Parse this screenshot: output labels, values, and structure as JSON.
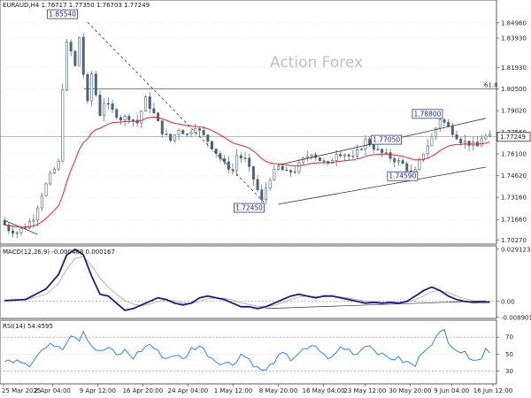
{
  "chart_data": [
    {
      "type": "candlestick",
      "title": "EURAUD,H4  1.76717 1.77350 1.76703 1.77249",
      "watermark": "Action Forex",
      "ylim": [
        1.7,
        1.865
      ],
      "y_ticks": [
        "1.84960",
        "1.83930",
        "1.81930",
        "1.80500",
        "1.79020",
        "1.77560",
        "1.76100",
        "1.74620",
        "1.73160",
        "1.71660",
        "1.70270"
      ],
      "current_price": "1.77249",
      "fib_label": "61.8",
      "fib_level": 1.805,
      "annotations": [
        {
          "label": "1.85540",
          "idx": 18,
          "price": 1.8554,
          "side": "left"
        },
        {
          "label": "1.72450",
          "idx": 63,
          "price": 1.7245,
          "side": "left"
        },
        {
          "label": "1.77050",
          "idx": 88,
          "price": 1.7705,
          "side": "right"
        },
        {
          "label": "1.74590",
          "idx": 100,
          "price": 1.7459,
          "side": "left"
        },
        {
          "label": "1.78800",
          "idx": 106,
          "price": 1.788,
          "side": "left"
        }
      ],
      "trendlines": [
        {
          "x1": 0,
          "y1": 1.716,
          "x2": 8,
          "y2": 1.7065
        },
        {
          "x1": 20,
          "y1": 1.85,
          "x2": 63,
          "y2": 1.727,
          "style": "dashed"
        },
        {
          "x1": 66,
          "y1": 1.7535,
          "x2": 116,
          "y2": 1.785
        },
        {
          "x1": 66,
          "y1": 1.727,
          "x2": 116,
          "y2": 1.752
        }
      ],
      "close_points": [
        [
          0,
          1.716
        ],
        [
          2,
          1.71
        ],
        [
          4,
          1.708
        ],
        [
          6,
          1.712
        ],
        [
          8,
          1.718
        ],
        [
          10,
          1.734
        ],
        [
          12,
          1.746
        ],
        [
          14,
          1.755
        ],
        [
          15,
          1.806
        ],
        [
          16,
          1.835
        ],
        [
          17,
          1.83
        ],
        [
          18,
          1.82
        ],
        [
          19,
          1.84
        ],
        [
          20,
          1.815
        ],
        [
          21,
          1.795
        ],
        [
          22,
          1.815
        ],
        [
          23,
          1.801
        ],
        [
          24,
          1.788
        ],
        [
          25,
          1.796
        ],
        [
          27,
          1.79
        ],
        [
          29,
          1.785
        ],
        [
          31,
          1.786
        ],
        [
          33,
          1.782
        ],
        [
          35,
          1.798
        ],
        [
          37,
          1.788
        ],
        [
          39,
          1.776
        ],
        [
          41,
          1.77
        ],
        [
          43,
          1.778
        ],
        [
          45,
          1.774
        ],
        [
          47,
          1.78
        ],
        [
          48,
          1.776
        ],
        [
          50,
          1.77
        ],
        [
          52,
          1.762
        ],
        [
          54,
          1.754
        ],
        [
          56,
          1.75
        ],
        [
          57,
          1.76
        ],
        [
          59,
          1.757
        ],
        [
          61,
          1.744
        ],
        [
          63,
          1.729
        ],
        [
          64,
          1.738
        ],
        [
          65,
          1.745
        ],
        [
          67,
          1.752
        ],
        [
          69,
          1.748
        ],
        [
          71,
          1.75
        ],
        [
          73,
          1.757
        ],
        [
          75,
          1.762
        ],
        [
          77,
          1.757
        ],
        [
          79,
          1.753
        ],
        [
          81,
          1.762
        ],
        [
          83,
          1.761
        ],
        [
          85,
          1.758
        ],
        [
          87,
          1.766
        ],
        [
          88,
          1.77
        ],
        [
          89,
          1.768
        ],
        [
          91,
          1.763
        ],
        [
          93,
          1.76
        ],
        [
          95,
          1.757
        ],
        [
          97,
          1.754
        ],
        [
          99,
          1.748
        ],
        [
          100,
          1.749
        ],
        [
          102,
          1.762
        ],
        [
          104,
          1.772
        ],
        [
          106,
          1.785
        ],
        [
          107,
          1.782
        ],
        [
          109,
          1.776
        ],
        [
          111,
          1.77
        ],
        [
          113,
          1.768
        ],
        [
          115,
          1.766
        ],
        [
          116,
          1.772
        ],
        [
          117,
          1.7725
        ]
      ],
      "x_ticks": [
        "25 Mar 2025",
        "2 Apr 04:00",
        "9 Apr 12:00",
        "16 Apr 20:00",
        "24 Apr 04:00",
        "1 May 12:00",
        "8 May 20:00",
        "16 May 04:00",
        "23 May 12:00",
        "30 May 20:00",
        "9 Jun 04:00",
        "16 Jun 12:00"
      ],
      "x_tick_idx": [
        0,
        13,
        25,
        37,
        49,
        61,
        73,
        85,
        96,
        108,
        119,
        130
      ],
      "colors": {
        "candle": "#4a6380",
        "ma": "#e8262d",
        "grid": "#d7d9dc",
        "label_border": "#2b3a8c",
        "label_text": "#1c2a80"
      }
    },
    {
      "type": "line",
      "title": "MACD(12,26,9) -0.000408 0.000167",
      "y_ticks": [
        "0.029123",
        "0.00",
        "-0.008901"
      ],
      "series": [
        {
          "role": "macd",
          "points": [
            [
              0,
              0.0005
            ],
            [
              5,
              0.001
            ],
            [
              10,
              0.007
            ],
            [
              13,
              0.015
            ],
            [
              15,
              0.026
            ],
            [
              17,
              0.029
            ],
            [
              19,
              0.026
            ],
            [
              21,
              0.014
            ],
            [
              23,
              0.004
            ],
            [
              25,
              0.003
            ],
            [
              27,
              -0.001
            ],
            [
              29,
              -0.005
            ],
            [
              31,
              -0.004
            ],
            [
              33,
              -0.002
            ],
            [
              35,
              0.0
            ],
            [
              37,
              0.002
            ],
            [
              39,
              0.001
            ],
            [
              41,
              -0.001
            ],
            [
              43,
              -0.002
            ],
            [
              45,
              -0.001
            ],
            [
              47,
              0.002
            ],
            [
              49,
              0.003
            ],
            [
              51,
              0.002
            ],
            [
              53,
              0.001
            ],
            [
              55,
              -0.001
            ],
            [
              57,
              -0.003
            ],
            [
              59,
              -0.003
            ],
            [
              61,
              -0.004
            ],
            [
              63,
              -0.003
            ],
            [
              65,
              -0.001
            ],
            [
              67,
              0.001
            ],
            [
              69,
              0.003
            ],
            [
              71,
              0.004
            ],
            [
              73,
              0.003
            ],
            [
              75,
              0.002
            ],
            [
              77,
              0.003
            ],
            [
              79,
              0.003
            ],
            [
              81,
              0.002
            ],
            [
              83,
              0.001
            ],
            [
              85,
              0.0
            ],
            [
              87,
              -0.001
            ],
            [
              89,
              -0.0005
            ],
            [
              91,
              -0.001
            ],
            [
              93,
              -0.0005
            ],
            [
              95,
              -0.001
            ],
            [
              97,
              0.0
            ],
            [
              99,
              0.003
            ],
            [
              101,
              0.006
            ],
            [
              103,
              0.008
            ],
            [
              105,
              0.006
            ],
            [
              107,
              0.003
            ],
            [
              109,
              0.001
            ],
            [
              111,
              0.0
            ],
            [
              113,
              -0.0005
            ],
            [
              115,
              -0.0004
            ]
          ]
        },
        {
          "role": "signal",
          "points": [
            [
              0,
              0.0005
            ],
            [
              5,
              0.0008
            ],
            [
              10,
              0.004
            ],
            [
              13,
              0.01
            ],
            [
              15,
              0.018
            ],
            [
              17,
              0.024
            ],
            [
              19,
              0.025
            ],
            [
              21,
              0.02
            ],
            [
              23,
              0.013
            ],
            [
              25,
              0.008
            ],
            [
              27,
              0.004
            ],
            [
              29,
              0.0005
            ],
            [
              31,
              -0.0015
            ],
            [
              33,
              -0.0025
            ],
            [
              35,
              -0.0015
            ],
            [
              37,
              0.0
            ],
            [
              39,
              0.0008
            ],
            [
              41,
              0.0003
            ],
            [
              43,
              -0.0008
            ],
            [
              45,
              -0.0012
            ],
            [
              47,
              0.0
            ],
            [
              49,
              0.0015
            ],
            [
              51,
              0.002
            ],
            [
              53,
              0.0017
            ],
            [
              55,
              0.0008
            ],
            [
              57,
              -0.0008
            ],
            [
              59,
              -0.0018
            ],
            [
              61,
              -0.0028
            ],
            [
              63,
              -0.003
            ],
            [
              65,
              -0.0022
            ],
            [
              67,
              -0.0008
            ],
            [
              69,
              0.001
            ],
            [
              71,
              0.0025
            ],
            [
              73,
              0.003
            ],
            [
              75,
              0.0027
            ],
            [
              77,
              0.0027
            ],
            [
              79,
              0.0028
            ],
            [
              81,
              0.0025
            ],
            [
              83,
              0.0018
            ],
            [
              85,
              0.001
            ],
            [
              87,
              0.0002
            ],
            [
              89,
              -0.0002
            ],
            [
              91,
              -0.0006
            ],
            [
              93,
              -0.0006
            ],
            [
              95,
              -0.0008
            ],
            [
              97,
              -0.0004
            ],
            [
              99,
              0.001
            ],
            [
              101,
              0.003
            ],
            [
              103,
              0.0055
            ],
            [
              105,
              0.006
            ],
            [
              107,
              0.0048
            ],
            [
              109,
              0.003
            ],
            [
              111,
              0.0015
            ],
            [
              113,
              0.0004
            ],
            [
              115,
              0.0002
            ]
          ]
        }
      ],
      "trendlines": [
        {
          "x1": 63,
          "y1": -0.004,
          "x2": 116,
          "y2": 0.0003
        }
      ],
      "ylim": [
        -0.0095,
        0.031
      ],
      "colors": {
        "macd": "#1a1d8c",
        "signal": "#b5b5b5",
        "zero": "#8a8a8a"
      }
    },
    {
      "type": "line",
      "title": "RSI(14) 54.4595",
      "y_ticks": [
        "70",
        "50",
        "30"
      ],
      "ylim": [
        15,
        90
      ],
      "levels": [
        70,
        30
      ],
      "series": [
        {
          "role": "rsi",
          "points": [
            [
              0,
              40
            ],
            [
              3,
              45
            ],
            [
              6,
              38
            ],
            [
              9,
              55
            ],
            [
              12,
              62
            ],
            [
              14,
              58
            ],
            [
              16,
              74
            ],
            [
              18,
              68
            ],
            [
              19,
              78
            ],
            [
              21,
              60
            ],
            [
              23,
              52
            ],
            [
              25,
              58
            ],
            [
              27,
              48
            ],
            [
              29,
              54
            ],
            [
              31,
              46
            ],
            [
              33,
              55
            ],
            [
              35,
              62
            ],
            [
              37,
              52
            ],
            [
              39,
              45
            ],
            [
              41,
              50
            ],
            [
              43,
              43
            ],
            [
              45,
              56
            ],
            [
              47,
              60
            ],
            [
              49,
              50
            ],
            [
              51,
              42
            ],
            [
              53,
              40
            ],
            [
              55,
              38
            ],
            [
              57,
              50
            ],
            [
              59,
              44
            ],
            [
              61,
              33
            ],
            [
              63,
              30
            ],
            [
              65,
              42
            ],
            [
              67,
              50
            ],
            [
              69,
              44
            ],
            [
              71,
              52
            ],
            [
              73,
              55
            ],
            [
              75,
              60
            ],
            [
              77,
              48
            ],
            [
              79,
              45
            ],
            [
              81,
              58
            ],
            [
              83,
              55
            ],
            [
              85,
              50
            ],
            [
              87,
              62
            ],
            [
              89,
              57
            ],
            [
              91,
              48
            ],
            [
              93,
              46
            ],
            [
              95,
              44
            ],
            [
              97,
              40
            ],
            [
              99,
              36
            ],
            [
              101,
              55
            ],
            [
              103,
              64
            ],
            [
              105,
              74
            ],
            [
              106,
              78
            ],
            [
              107,
              66
            ],
            [
              109,
              56
            ],
            [
              111,
              50
            ],
            [
              113,
              46
            ],
            [
              115,
              44
            ],
            [
              116,
              56
            ],
            [
              117,
              54
            ]
          ]
        }
      ],
      "colors": {
        "rsi": "#2f86e8",
        "levels": "#999999"
      }
    }
  ]
}
